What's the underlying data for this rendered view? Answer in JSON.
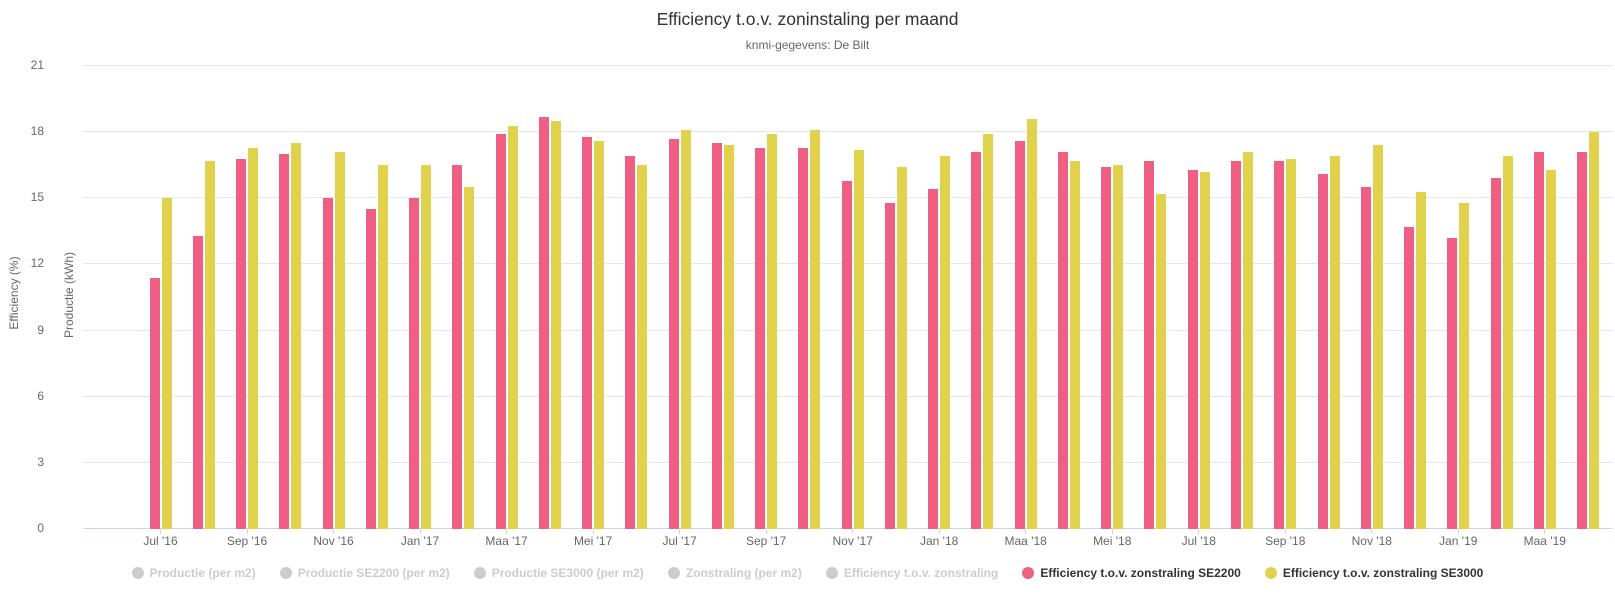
{
  "chart": {
    "title": "Efficiency t.o.v. zoninstaling per maand",
    "subtitle": "knmi-gegevens: De Bilt",
    "y_axis_title_1": "Efficiency (%)",
    "y_axis_title_2": "Productie (kWh)"
  },
  "chart_data": {
    "type": "bar",
    "title": "Efficiency t.o.v. zoninstaling per maand",
    "subtitle": "knmi-gegevens: De Bilt",
    "ylabel_1": "Efficiency (%)",
    "ylabel_2": "Productie (kWh)",
    "ylim": [
      0,
      21
    ],
    "y_ticks": [
      0,
      3,
      6,
      9,
      12,
      15,
      18,
      21
    ],
    "grid": true,
    "legend_position": "bottom",
    "x_tick_step": 2,
    "x_tick_labels": [
      "Jul '16",
      "Sep '16",
      "Nov '16",
      "Jan '17",
      "Maa '17",
      "Mei '17",
      "Jul '17",
      "Sep '17",
      "Nov '17",
      "Jan '18",
      "Maa '18",
      "Mei '18",
      "Jul '18",
      "Sep '18",
      "Nov '18",
      "Jan '19",
      "Maa '19"
    ],
    "categories": [
      "Jul '16",
      "Aug '16",
      "Sep '16",
      "Okt '16",
      "Nov '16",
      "Dec '16",
      "Jan '17",
      "Feb '17",
      "Maa '17",
      "Apr '17",
      "Mei '17",
      "Jun '17",
      "Jul '17",
      "Aug '17",
      "Sep '17",
      "Okt '17",
      "Nov '17",
      "Dec '17",
      "Jan '18",
      "Feb '18",
      "Maa '18",
      "Apr '18",
      "Mei '18",
      "Jun '18",
      "Jul '18",
      "Aug '18",
      "Sep '18",
      "Okt '18",
      "Nov '18",
      "Dec '18",
      "Jan '19",
      "Feb '19",
      "Maa '19",
      "Apr '19"
    ],
    "series": [
      {
        "name": "Efficiency t.o.v. zonstraling SE2200",
        "color": "#ef5f83",
        "values": [
          11.4,
          13.3,
          16.8,
          17.0,
          15.0,
          14.5,
          15.0,
          16.5,
          17.9,
          18.7,
          17.8,
          16.9,
          17.7,
          17.5,
          17.3,
          17.3,
          15.8,
          14.8,
          15.4,
          17.1,
          17.6,
          17.1,
          16.4,
          16.7,
          16.3,
          16.7,
          16.7,
          16.1,
          15.5,
          13.7,
          13.2,
          15.9,
          17.1,
          17.1
        ]
      },
      {
        "name": "Efficiency t.o.v. zonstraling SE3000",
        "color": "#e1d24e",
        "values": [
          15.0,
          16.7,
          17.3,
          17.5,
          17.1,
          16.5,
          16.5,
          15.5,
          18.3,
          18.5,
          17.6,
          16.5,
          18.1,
          17.4,
          17.9,
          18.1,
          17.2,
          16.4,
          16.9,
          17.9,
          18.6,
          16.7,
          16.5,
          15.2,
          16.2,
          17.1,
          16.8,
          16.9,
          17.4,
          15.3,
          14.8,
          16.9,
          16.3,
          18.0
        ]
      }
    ]
  },
  "legend": {
    "items": [
      {
        "label": "Productie (per m2)",
        "enabled": false
      },
      {
        "label": "Productie SE2200 (per m2)",
        "enabled": false
      },
      {
        "label": "Productie SE3000 (per m2)",
        "enabled": false
      },
      {
        "label": "Zonstraling (per m2)",
        "enabled": false
      },
      {
        "label": "Efficiency t.o.v. zonstraling",
        "enabled": false
      },
      {
        "label": "Efficiency t.o.v. zonstraling SE2200",
        "enabled": true,
        "color": "#ef5f83"
      },
      {
        "label": "Efficiency t.o.v. zonstraling SE3000",
        "enabled": true,
        "color": "#e1d24e"
      }
    ]
  },
  "colors": {
    "series_se2200": "#ef5f83",
    "series_se3000": "#e1d24e",
    "grid_line": "#e6e6e6",
    "axis_line": "#ccd6eb",
    "title_text": "#333333",
    "subtitle_text": "#666666",
    "axis_label_text": "#666666",
    "legend_active_text": "#333333",
    "legend_disabled": "#cccccc",
    "background": "#ffffff"
  }
}
